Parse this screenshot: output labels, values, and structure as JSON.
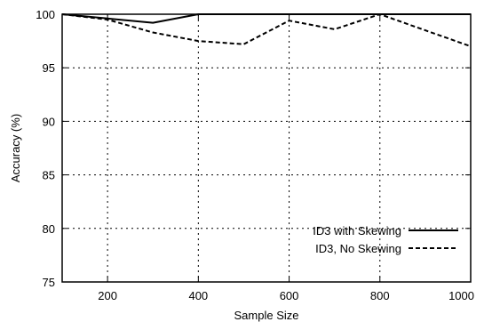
{
  "chart_data": {
    "type": "line",
    "title": "",
    "xlabel": "Sample Size",
    "ylabel": "Accuracy (%)",
    "xlim": [
      100,
      1000
    ],
    "ylim": [
      75,
      100
    ],
    "x_ticks": [
      200,
      400,
      600,
      800,
      1000
    ],
    "y_ticks": [
      75,
      80,
      85,
      90,
      95,
      100
    ],
    "grid": true,
    "legend_position": "bottom-right",
    "series": [
      {
        "name": "ID3 with Skewing",
        "style": "solid",
        "x": [
          100,
          200,
          300,
          400,
          500,
          600,
          700,
          800,
          900,
          1000
        ],
        "y": [
          100,
          99.6,
          99.2,
          100,
          100,
          100,
          100,
          100,
          100,
          100
        ]
      },
      {
        "name": "ID3, No Skewing",
        "style": "dashed",
        "x": [
          100,
          200,
          300,
          400,
          500,
          600,
          700,
          800,
          900,
          1000
        ],
        "y": [
          100,
          99.5,
          98.3,
          97.5,
          97.2,
          99.4,
          98.6,
          100,
          98.5,
          97.0
        ]
      }
    ]
  }
}
